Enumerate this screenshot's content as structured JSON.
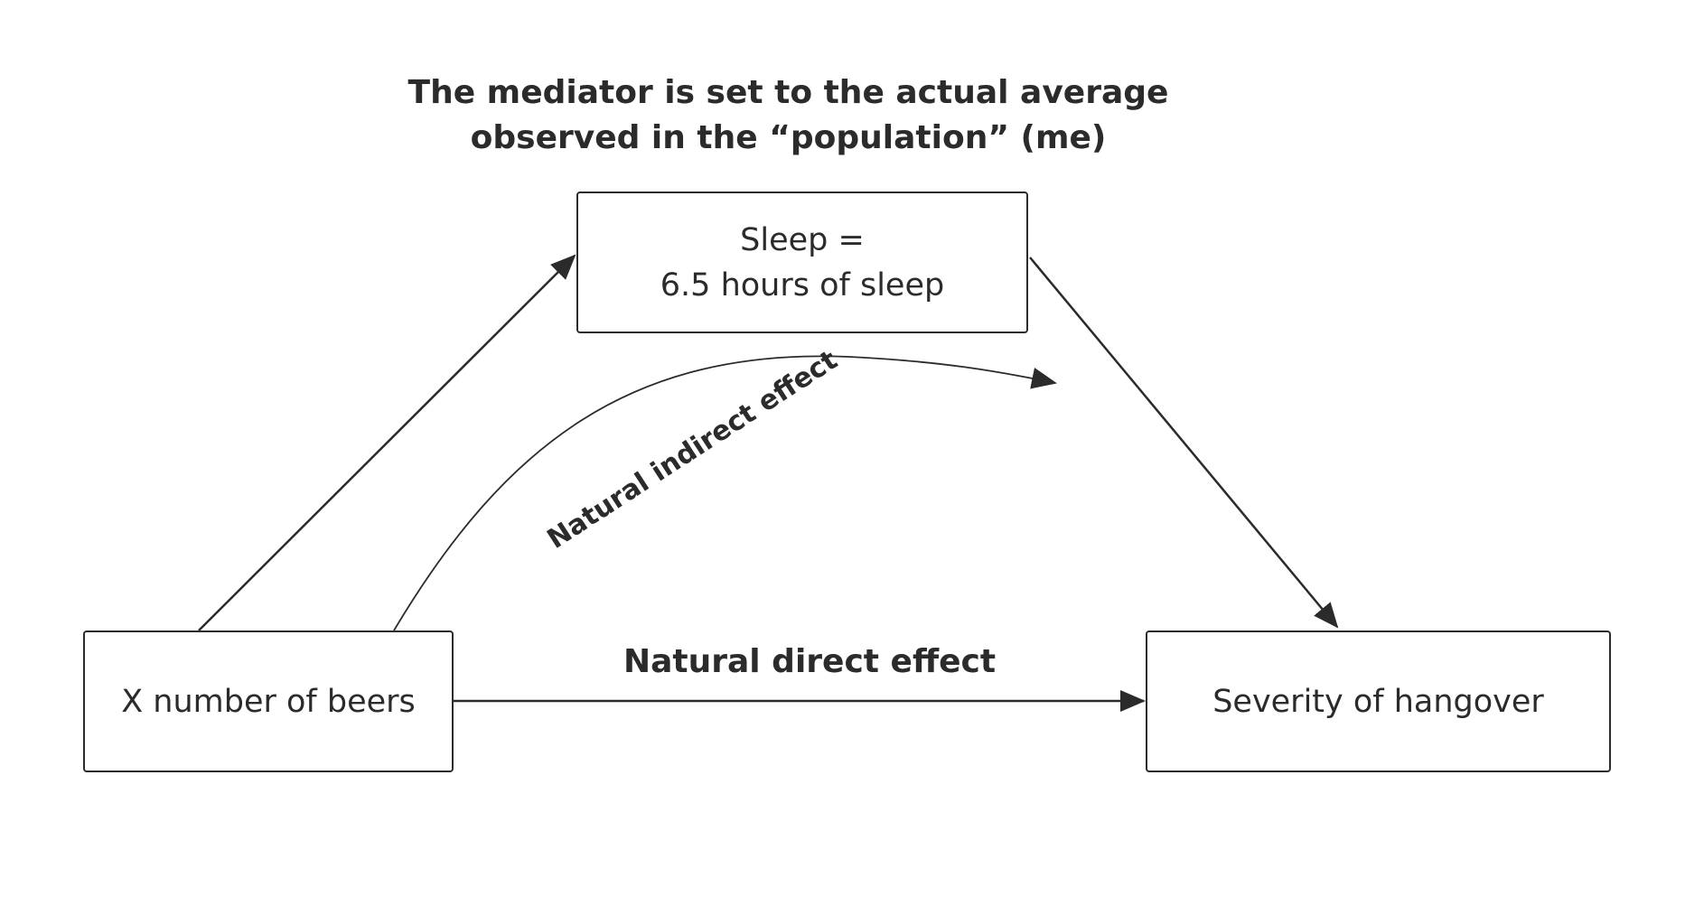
{
  "caption": {
    "line1": "The mediator is set to the actual average",
    "line2": "observed in the “population” (me)"
  },
  "nodes": {
    "mediator": {
      "line1": "Sleep =",
      "line2": "6.5 hours of sleep"
    },
    "exposure": {
      "label": "X number of beers"
    },
    "outcome": {
      "label": "Severity of hangover"
    }
  },
  "edges": {
    "direct_label": "Natural direct effect",
    "indirect_label": "Natural indirect effect"
  },
  "colors": {
    "stroke": "#2b2b2b",
    "text": "#2b2b2b",
    "background": "#ffffff"
  }
}
